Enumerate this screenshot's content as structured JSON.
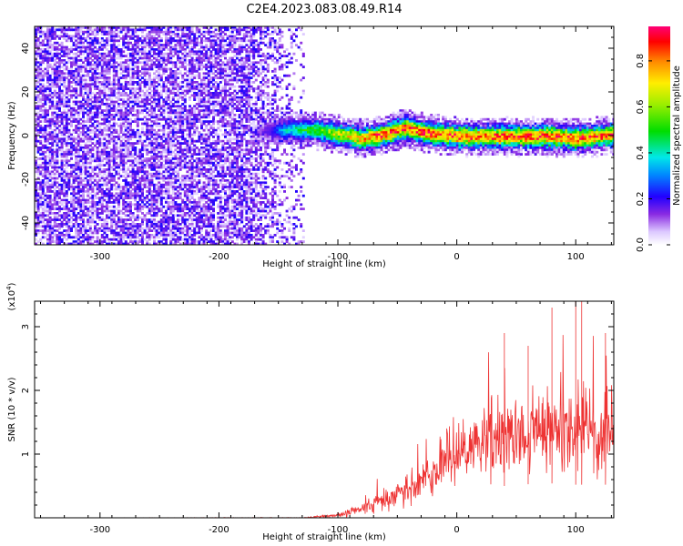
{
  "title": "C2E4.2023.083.08.49.R14",
  "chart_data": [
    {
      "type": "heatmap",
      "xlabel": "Height of straight line (km)",
      "ylabel": "Frequency (Hz)",
      "xlim": [
        -355,
        132
      ],
      "ylim": [
        -50,
        50
      ],
      "xticks": [
        -300,
        -200,
        -100,
        0,
        100
      ],
      "xtick_labels": [
        "-300",
        "-200",
        "-100",
        "0",
        "100"
      ],
      "yticks": [
        -40,
        -20,
        0,
        20,
        40
      ],
      "ytick_labels": [
        "-40",
        "-20",
        "0",
        "20",
        "40"
      ],
      "colorbar": {
        "label": "Normalized spectral amplitude",
        "range": [
          0,
          0.95
        ],
        "ticks": [
          0,
          0.2,
          0.4,
          0.6,
          0.8
        ],
        "tick_labels": [
          "0.0",
          "0.2",
          "0.4",
          "0.6",
          "0.8"
        ]
      },
      "noise_region": {
        "x_range": [
          -355,
          -135
        ],
        "amplitude_range": [
          0.05,
          0.2
        ]
      },
      "signal_band": {
        "x_range": [
          -185,
          132
        ],
        "centerline": [
          {
            "x": -180,
            "f": 2
          },
          {
            "x": -140,
            "f": 3
          },
          {
            "x": -120,
            "f": 3
          },
          {
            "x": -100,
            "f": 1
          },
          {
            "x": -80,
            "f": -1
          },
          {
            "x": -60,
            "f": 1
          },
          {
            "x": -45,
            "f": 4
          },
          {
            "x": -30,
            "f": 2
          },
          {
            "x": 0,
            "f": 0
          },
          {
            "x": 40,
            "f": 0
          },
          {
            "x": 80,
            "f": 0
          },
          {
            "x": 100,
            "f": -1
          },
          {
            "x": 132,
            "f": 1
          }
        ],
        "peak_amplitude": 0.9
      }
    },
    {
      "type": "line",
      "xlabel": "Height of straight line (km)",
      "ylabel": "SNR (10 * v/v)",
      "multiplier_label": "(x10",
      "multiplier_exponent": "4",
      "multiplier_close": ")",
      "xlim": [
        -355,
        132
      ],
      "ylim": [
        0,
        3.4
      ],
      "xticks": [
        -300,
        -200,
        -100,
        0,
        100
      ],
      "xtick_labels": [
        "-300",
        "-200",
        "-100",
        "0",
        "100"
      ],
      "yticks": [
        1,
        2,
        3
      ],
      "ytick_labels": [
        "1",
        "2",
        "3"
      ],
      "color": "#ee3333",
      "envelope": [
        {
          "x": -355,
          "mean": 0.0,
          "spread": 0.0
        },
        {
          "x": -130,
          "mean": 0.0,
          "spread": 0.01
        },
        {
          "x": -100,
          "mean": 0.04,
          "spread": 0.04
        },
        {
          "x": -80,
          "mean": 0.15,
          "spread": 0.12
        },
        {
          "x": -50,
          "mean": 0.35,
          "spread": 0.3
        },
        {
          "x": -20,
          "mean": 0.7,
          "spread": 0.45
        },
        {
          "x": 0,
          "mean": 0.95,
          "spread": 0.6
        },
        {
          "x": 20,
          "mean": 1.15,
          "spread": 0.7
        },
        {
          "x": 50,
          "mean": 1.3,
          "spread": 0.8
        },
        {
          "x": 80,
          "mean": 1.35,
          "spread": 0.85
        },
        {
          "x": 100,
          "mean": 1.3,
          "spread": 0.85
        },
        {
          "x": 132,
          "mean": 1.3,
          "spread": 0.8
        }
      ],
      "spikes": [
        {
          "x": 40,
          "y": 2.9
        },
        {
          "x": 60,
          "y": 2.7
        },
        {
          "x": 80,
          "y": 3.3
        },
        {
          "x": 100,
          "y": 3.4
        },
        {
          "x": 105,
          "y": 3.4
        },
        {
          "x": 125,
          "y": 2.9
        }
      ]
    }
  ]
}
